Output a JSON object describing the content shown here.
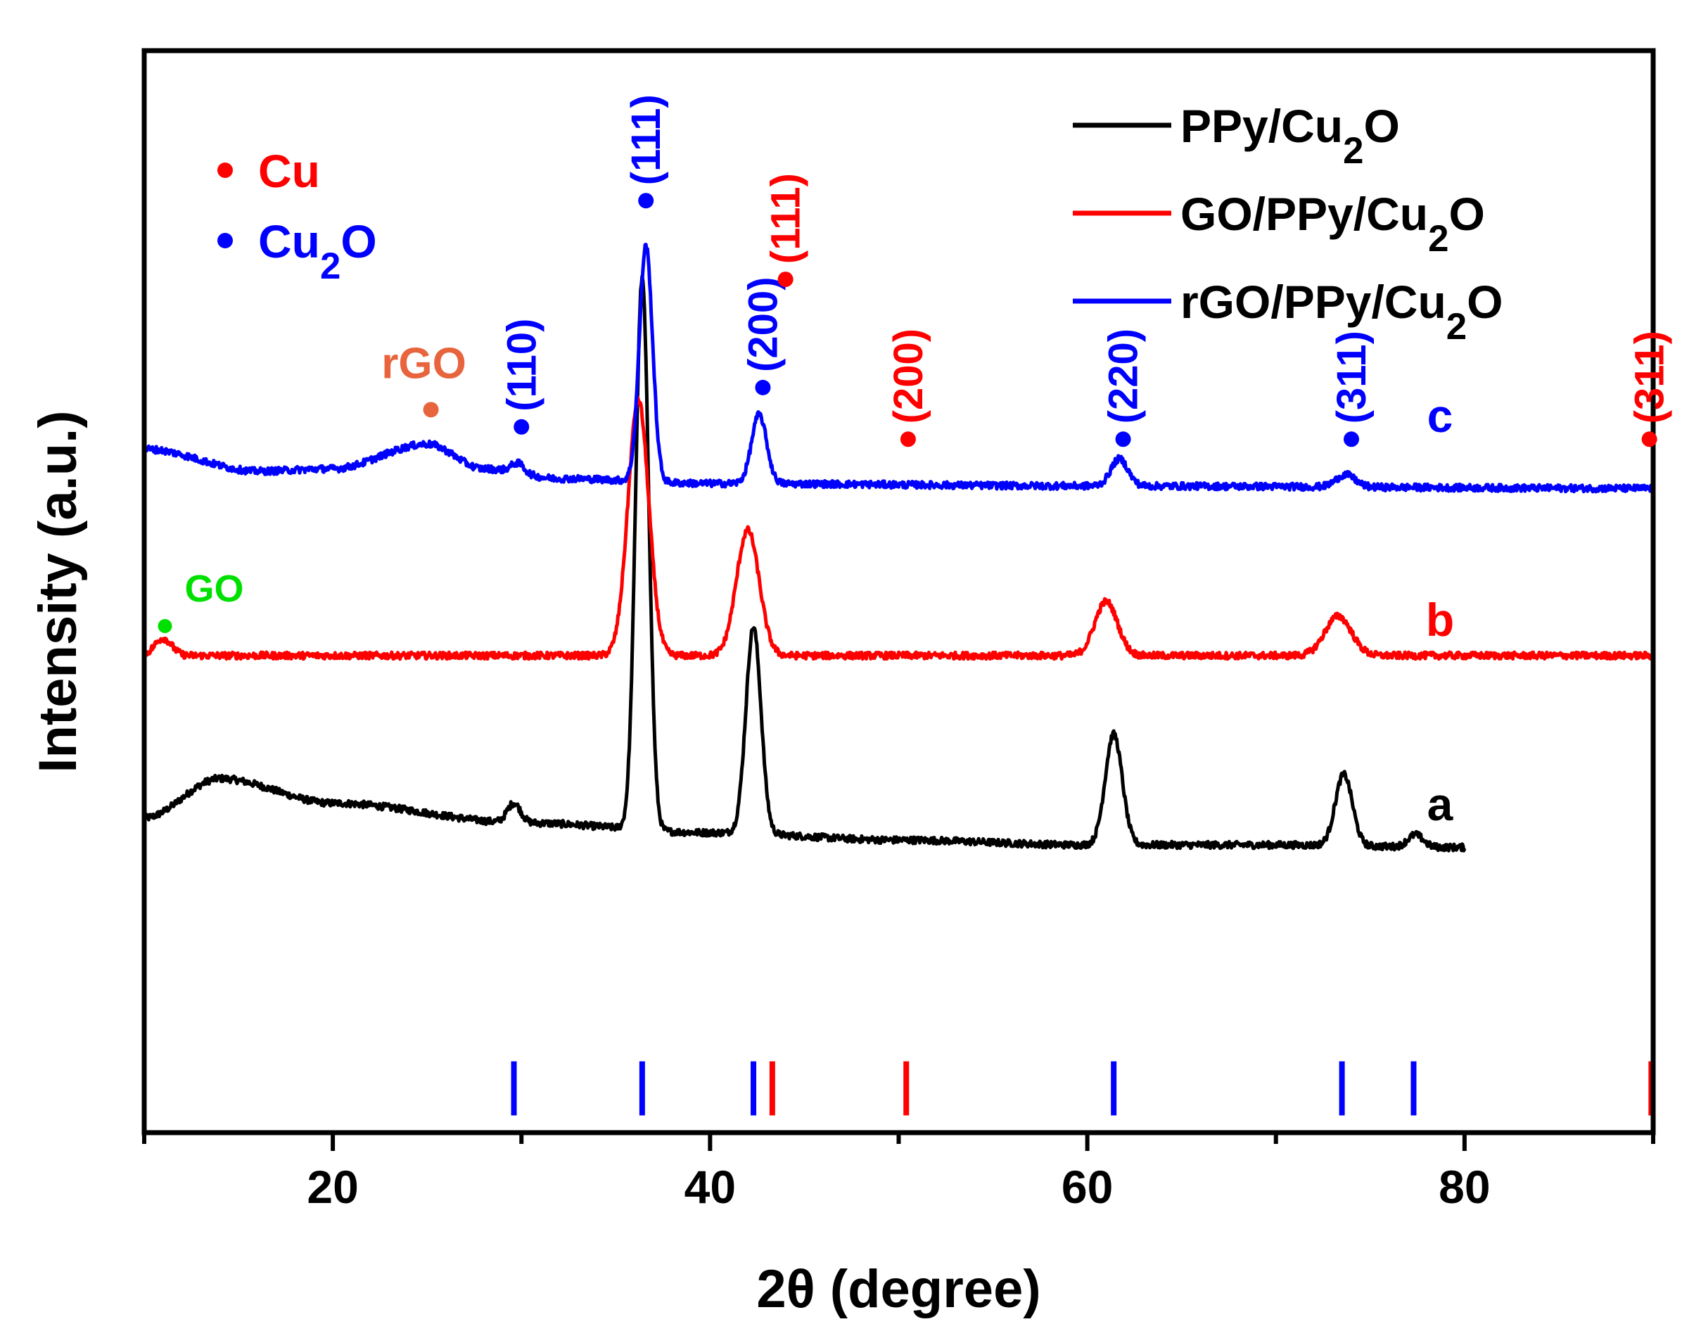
{
  "chart_data": {
    "type": "line",
    "xlabel": "2θ (degree)",
    "ylabel": "Intensity (a.u.)",
    "xlim": [
      10,
      90
    ],
    "ylim": [
      -200,
      2000
    ],
    "x_ticks": [
      20,
      40,
      60,
      80
    ],
    "y_ticks_shown": false,
    "colors": {
      "black": "#000000",
      "red": "#ff0000",
      "blue": "#0000ff",
      "green": "#00e000",
      "salmon": "#e8643c"
    },
    "legend": {
      "position": "top-right",
      "items": [
        {
          "base": "PPy/Cu",
          "sub": "2",
          "tail": "O",
          "color": "#000000"
        },
        {
          "base": "GO/PPy/Cu",
          "sub": "2",
          "tail": "O",
          "color": "#ff0000"
        },
        {
          "base": "rGO/PPy/Cu",
          "sub": "2",
          "tail": "O",
          "color": "#0000ff"
        }
      ]
    },
    "marker_legend": [
      {
        "base": "Cu",
        "sub": "",
        "tail": "",
        "color": "#ff0000"
      },
      {
        "base": "Cu",
        "sub": "2",
        "tail": "O",
        "color": "#0000ff"
      }
    ],
    "series": [
      {
        "name": "PPy/Cu2O",
        "tag": "a",
        "color": "#000000",
        "x_end": 80,
        "baseline": [
          [
            10,
            440
          ],
          [
            14,
            520
          ],
          [
            20,
            470
          ],
          [
            30,
            430
          ],
          [
            40,
            410
          ],
          [
            50,
            395
          ],
          [
            60,
            385
          ],
          [
            70,
            385
          ],
          [
            80,
            380
          ]
        ],
        "peaks": [
          [
            29.6,
            40,
            0.35
          ],
          [
            36.4,
            1120,
            0.35
          ],
          [
            42.3,
            420,
            0.4
          ],
          [
            61.4,
            225,
            0.45
          ],
          [
            73.6,
            145,
            0.45
          ],
          [
            77.4,
            25,
            0.4
          ]
        ]
      },
      {
        "name": "GO/PPy/Cu2O",
        "tag": "b",
        "color": "#ff0000",
        "x_end": 90,
        "baseline": [
          [
            10,
            770
          ],
          [
            90,
            770
          ]
        ],
        "peaks": [
          [
            11.0,
            35,
            0.45
          ],
          [
            36.2,
            520,
            0.55
          ],
          [
            42.0,
            255,
            0.6
          ],
          [
            61.0,
            110,
            0.6
          ],
          [
            73.3,
            80,
            0.7
          ]
        ]
      },
      {
        "name": "rGO/PPy/Cu2O",
        "tag": "c",
        "color": "#0000ff",
        "x_end": 90,
        "baseline": [
          [
            10,
            1190
          ],
          [
            16,
            1145
          ],
          [
            20,
            1150
          ],
          [
            25,
            1200
          ],
          [
            28,
            1150
          ],
          [
            32,
            1130
          ],
          [
            40,
            1120
          ],
          [
            60,
            1115
          ],
          [
            90,
            1110
          ]
        ],
        "peaks": [
          [
            29.8,
            20,
            0.35
          ],
          [
            36.6,
            480,
            0.35
          ],
          [
            42.6,
            140,
            0.4
          ],
          [
            61.7,
            55,
            0.45
          ],
          [
            73.7,
            25,
            0.5
          ]
        ]
      }
    ],
    "reference_lines": [
      {
        "x": 29.6,
        "color": "#0000ff"
      },
      {
        "x": 36.4,
        "color": "#0000ff"
      },
      {
        "x": 42.3,
        "color": "#0000ff"
      },
      {
        "x": 43.3,
        "color": "#ff0000"
      },
      {
        "x": 50.4,
        "color": "#ff0000"
      },
      {
        "x": 61.4,
        "color": "#0000ff"
      },
      {
        "x": 73.5,
        "color": "#0000ff"
      },
      {
        "x": 77.3,
        "color": "#0000ff"
      },
      {
        "x": 89.9,
        "color": "#ff0000"
      }
    ],
    "peak_annotations": [
      {
        "text": "(110)",
        "x": 30.0,
        "y": 1235,
        "color": "#0000ff"
      },
      {
        "text": "(111)",
        "x": 36.6,
        "y": 1695,
        "color": "#0000ff"
      },
      {
        "text": "(200)",
        "x": 42.8,
        "y": 1315,
        "color": "#0000ff"
      },
      {
        "text": "(111)",
        "x": 44.0,
        "y": 1535,
        "color": "#ff0000"
      },
      {
        "text": "(200)",
        "x": 50.5,
        "y": 1210,
        "color": "#ff0000"
      },
      {
        "text": "(220)",
        "x": 61.9,
        "y": 1210,
        "color": "#0000ff"
      },
      {
        "text": "(311)",
        "x": 74.0,
        "y": 1210,
        "color": "#0000ff"
      },
      {
        "text": "(311)",
        "x": 89.8,
        "y": 1210,
        "color": "#ff0000"
      }
    ],
    "point_annotations": [
      {
        "text": "rGO",
        "x": 25.2,
        "y": 1270,
        "color": "#e8643c",
        "size": "large"
      },
      {
        "text": "GO",
        "x": 11.1,
        "y": 830,
        "color": "#00e000",
        "size": "small"
      }
    ],
    "curve_tags": [
      {
        "text": "c",
        "x": 78.7,
        "y": 1225,
        "color": "#0000ff"
      },
      {
        "text": "b",
        "x": 78.7,
        "y": 810,
        "color": "#ff0000"
      },
      {
        "text": "a",
        "x": 78.7,
        "y": 435,
        "color": "#000000"
      }
    ]
  }
}
